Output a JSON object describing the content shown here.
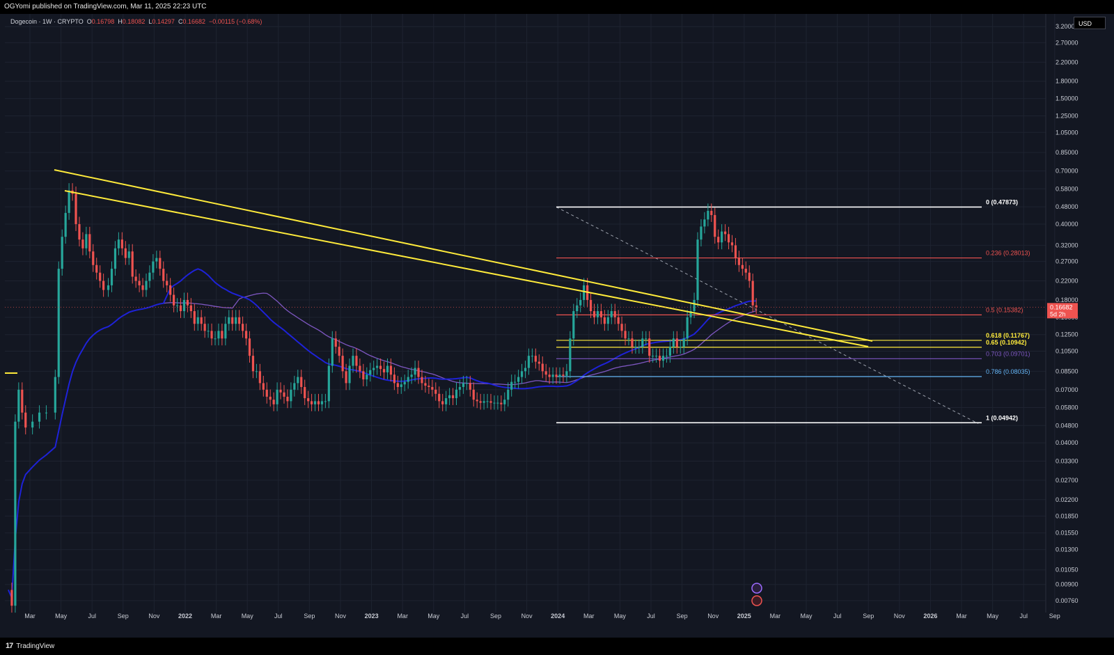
{
  "header": {
    "publish_text": "OGYomi published on TradingView.com, Mar 11, 2025 22:23 UTC"
  },
  "legend": {
    "symbol": "Dogecoin · 1W · CRYPTO",
    "o_label": "O",
    "o_value": "0.16798",
    "h_label": "H",
    "h_value": "0.18082",
    "l_label": "L",
    "l_value": "0.14297",
    "c_label": "C",
    "c_value": "0.16682",
    "change": "−0.00115 (−0.68%)"
  },
  "currency": "USD",
  "footer": {
    "brand": "TradingView"
  },
  "colors": {
    "up": "#26a69a",
    "down": "#ef5350",
    "trendline": "#ffeb3b",
    "ma_blue": "#1e22d8",
    "ma_purple": "#7e57c2",
    "background": "#131722"
  },
  "chart_data": {
    "type": "candlestick",
    "title": "",
    "y_scale": "log",
    "ylim": [
      0.0068,
      3.3
    ],
    "y_ticks": [
      "3.20000",
      "2.70000",
      "2.20000",
      "1.80000",
      "1.50000",
      "1.25000",
      "1.05000",
      "0.85000",
      "0.70000",
      "0.58000",
      "0.48000",
      "0.40000",
      "0.32000",
      "0.27000",
      "0.22000",
      "0.18000",
      "0.15000",
      "0.12500",
      "0.10500",
      "0.08500",
      "0.07000",
      "0.05800",
      "0.04800",
      "0.04000",
      "0.03300",
      "0.02700",
      "0.02200",
      "0.01850",
      "0.01550",
      "0.01300",
      "0.01050",
      "0.00900",
      "0.00760"
    ],
    "x_ticks": [
      "Mar",
      "May",
      "Jul",
      "Sep",
      "Nov",
      "2022",
      "Mar",
      "May",
      "Jul",
      "Sep",
      "Nov",
      "2023",
      "Mar",
      "May",
      "Jul",
      "Sep",
      "Nov",
      "2024",
      "Mar",
      "May",
      "Jul",
      "Sep",
      "Nov",
      "2025",
      "Mar",
      "May",
      "Jul",
      "Sep",
      "Nov",
      "2026",
      "Mar",
      "May",
      "Jul",
      "Sep"
    ],
    "last_price": {
      "value": "0.16682",
      "countdown": "5d 2h"
    },
    "fib_levels": [
      {
        "label": "0 (0.47873)",
        "value": 0.47873,
        "color": "#ffffff"
      },
      {
        "label": "0.236 (0.28013)",
        "value": 0.28013,
        "color": "#ef5350"
      },
      {
        "label": "0.5 (0.15382)",
        "value": 0.15382,
        "color": "#ef5350"
      },
      {
        "label": "0.618 (0.11767)",
        "value": 0.11767,
        "color": "#ffeb3b"
      },
      {
        "label": "0.65 (0.10942)",
        "value": 0.10942,
        "color": "#ffeb3b"
      },
      {
        "label": "0.703 (0.09701)",
        "value": 0.09701,
        "color": "#7e57c2"
      },
      {
        "label": "0.786 (0.08035)",
        "value": 0.08035,
        "color": "#64b5f6"
      },
      {
        "label": "1 (0.04942)",
        "value": 0.04942,
        "color": "#ffffff"
      }
    ],
    "price_path": [
      [
        0,
        0.0085
      ],
      [
        5,
        0.0072
      ],
      [
        10,
        0.05
      ],
      [
        15,
        0.07
      ],
      [
        20,
        0.055
      ],
      [
        25,
        0.047
      ],
      [
        35,
        0.05
      ],
      [
        45,
        0.055
      ],
      [
        55,
        0.055
      ],
      [
        68,
        0.08
      ],
      [
        73,
        0.25
      ],
      [
        78,
        0.35
      ],
      [
        83,
        0.45
      ],
      [
        88,
        0.57
      ],
      [
        93,
        0.55
      ],
      [
        98,
        0.4
      ],
      [
        103,
        0.34
      ],
      [
        108,
        0.31
      ],
      [
        113,
        0.36
      ],
      [
        118,
        0.3
      ],
      [
        123,
        0.26
      ],
      [
        128,
        0.24
      ],
      [
        133,
        0.22
      ],
      [
        138,
        0.2
      ],
      [
        145,
        0.21
      ],
      [
        150,
        0.25
      ],
      [
        155,
        0.31
      ],
      [
        160,
        0.34
      ],
      [
        165,
        0.31
      ],
      [
        170,
        0.28
      ],
      [
        175,
        0.3
      ],
      [
        180,
        0.23
      ],
      [
        185,
        0.22
      ],
      [
        190,
        0.21
      ],
      [
        195,
        0.2
      ],
      [
        200,
        0.22
      ],
      [
        205,
        0.24
      ],
      [
        210,
        0.27
      ],
      [
        215,
        0.28
      ],
      [
        220,
        0.25
      ],
      [
        225,
        0.22
      ],
      [
        230,
        0.21
      ],
      [
        235,
        0.19
      ],
      [
        240,
        0.17
      ],
      [
        245,
        0.17
      ],
      [
        250,
        0.16
      ],
      [
        255,
        0.18
      ],
      [
        260,
        0.17
      ],
      [
        265,
        0.16
      ],
      [
        270,
        0.14
      ],
      [
        275,
        0.15
      ],
      [
        280,
        0.14
      ],
      [
        285,
        0.13
      ],
      [
        290,
        0.13
      ],
      [
        295,
        0.12
      ],
      [
        300,
        0.12
      ],
      [
        305,
        0.13
      ],
      [
        310,
        0.12
      ],
      [
        315,
        0.14
      ],
      [
        320,
        0.15
      ],
      [
        325,
        0.14
      ],
      [
        330,
        0.15
      ],
      [
        335,
        0.14
      ],
      [
        340,
        0.13
      ],
      [
        345,
        0.12
      ],
      [
        350,
        0.1
      ],
      [
        355,
        0.085
      ],
      [
        360,
        0.085
      ],
      [
        365,
        0.075
      ],
      [
        370,
        0.07
      ],
      [
        375,
        0.065
      ],
      [
        380,
        0.063
      ],
      [
        385,
        0.06
      ],
      [
        390,
        0.07
      ],
      [
        395,
        0.068
      ],
      [
        400,
        0.065
      ],
      [
        405,
        0.062
      ],
      [
        410,
        0.07
      ],
      [
        415,
        0.075
      ],
      [
        420,
        0.08
      ],
      [
        425,
        0.072
      ],
      [
        430,
        0.064
      ],
      [
        435,
        0.062
      ],
      [
        440,
        0.06
      ],
      [
        445,
        0.062
      ],
      [
        450,
        0.06
      ],
      [
        455,
        0.062
      ],
      [
        460,
        0.062
      ],
      [
        465,
        0.09
      ],
      [
        470,
        0.12
      ],
      [
        475,
        0.11
      ],
      [
        480,
        0.1
      ],
      [
        485,
        0.085
      ],
      [
        490,
        0.075
      ],
      [
        495,
        0.09
      ],
      [
        500,
        0.1
      ],
      [
        505,
        0.09
      ],
      [
        510,
        0.085
      ],
      [
        515,
        0.078
      ],
      [
        520,
        0.082
      ],
      [
        525,
        0.086
      ],
      [
        530,
        0.088
      ],
      [
        535,
        0.09
      ],
      [
        540,
        0.087
      ],
      [
        545,
        0.084
      ],
      [
        550,
        0.09
      ],
      [
        555,
        0.082
      ],
      [
        560,
        0.075
      ],
      [
        565,
        0.072
      ],
      [
        570,
        0.074
      ],
      [
        575,
        0.076
      ],
      [
        580,
        0.08
      ],
      [
        585,
        0.082
      ],
      [
        590,
        0.088
      ],
      [
        595,
        0.08
      ],
      [
        600,
        0.075
      ],
      [
        605,
        0.073
      ],
      [
        610,
        0.072
      ],
      [
        615,
        0.07
      ],
      [
        620,
        0.067
      ],
      [
        625,
        0.062
      ],
      [
        630,
        0.06
      ],
      [
        635,
        0.064
      ],
      [
        640,
        0.066
      ],
      [
        645,
        0.064
      ],
      [
        650,
        0.07
      ],
      [
        655,
        0.072
      ],
      [
        660,
        0.075
      ],
      [
        665,
        0.075
      ],
      [
        670,
        0.07
      ],
      [
        675,
        0.063
      ],
      [
        680,
        0.062
      ],
      [
        685,
        0.061
      ],
      [
        690,
        0.062
      ],
      [
        695,
        0.062
      ],
      [
        700,
        0.061
      ],
      [
        705,
        0.061
      ],
      [
        710,
        0.061
      ],
      [
        715,
        0.06
      ],
      [
        720,
        0.063
      ],
      [
        725,
        0.07
      ],
      [
        730,
        0.076
      ],
      [
        735,
        0.076
      ],
      [
        740,
        0.08
      ],
      [
        745,
        0.085
      ],
      [
        750,
        0.088
      ],
      [
        755,
        0.1
      ],
      [
        760,
        0.1
      ],
      [
        765,
        0.094
      ],
      [
        770,
        0.092
      ],
      [
        775,
        0.085
      ],
      [
        780,
        0.082
      ],
      [
        785,
        0.08
      ],
      [
        790,
        0.082
      ],
      [
        795,
        0.08
      ],
      [
        800,
        0.082
      ],
      [
        805,
        0.081
      ],
      [
        810,
        0.085
      ],
      [
        815,
        0.12
      ],
      [
        820,
        0.16
      ],
      [
        825,
        0.17
      ],
      [
        830,
        0.18
      ],
      [
        835,
        0.21
      ],
      [
        840,
        0.18
      ],
      [
        845,
        0.16
      ],
      [
        850,
        0.15
      ],
      [
        855,
        0.16
      ],
      [
        860,
        0.15
      ],
      [
        865,
        0.14
      ],
      [
        870,
        0.15
      ],
      [
        875,
        0.16
      ],
      [
        880,
        0.15
      ],
      [
        885,
        0.14
      ],
      [
        890,
        0.13
      ],
      [
        895,
        0.12
      ],
      [
        900,
        0.12
      ],
      [
        905,
        0.11
      ],
      [
        910,
        0.11
      ],
      [
        915,
        0.11
      ],
      [
        920,
        0.12
      ],
      [
        925,
        0.12
      ],
      [
        930,
        0.1
      ],
      [
        935,
        0.1
      ],
      [
        940,
        0.1
      ],
      [
        945,
        0.095
      ],
      [
        950,
        0.1
      ],
      [
        955,
        0.1
      ],
      [
        960,
        0.11
      ],
      [
        965,
        0.12
      ],
      [
        970,
        0.11
      ],
      [
        975,
        0.11
      ],
      [
        980,
        0.12
      ],
      [
        985,
        0.15
      ],
      [
        990,
        0.16
      ],
      [
        995,
        0.18
      ],
      [
        1000,
        0.34
      ],
      [
        1005,
        0.39
      ],
      [
        1010,
        0.42
      ],
      [
        1015,
        0.46
      ],
      [
        1020,
        0.44
      ],
      [
        1025,
        0.35
      ],
      [
        1030,
        0.33
      ],
      [
        1035,
        0.37
      ],
      [
        1040,
        0.36
      ],
      [
        1045,
        0.33
      ],
      [
        1050,
        0.32
      ],
      [
        1055,
        0.28
      ],
      [
        1060,
        0.26
      ],
      [
        1065,
        0.25
      ],
      [
        1070,
        0.24
      ],
      [
        1075,
        0.22
      ],
      [
        1080,
        0.17
      ],
      [
        1085,
        0.167
      ]
    ]
  }
}
